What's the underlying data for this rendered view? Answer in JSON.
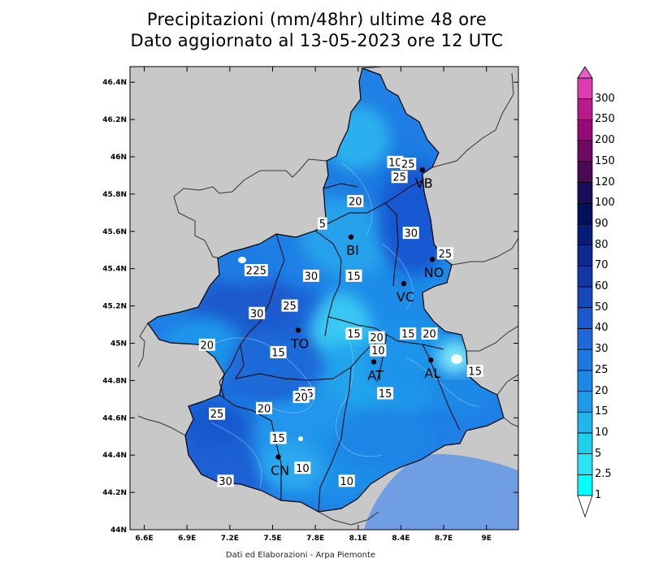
{
  "title": {
    "line1": "Precipitazioni (mm/48hr) ultime 48 ore",
    "line2": "Dato aggiornato al 13-05-2023 ore 12 UTC"
  },
  "footer": "Dati ed Elaborazioni - Arpa Piemonte",
  "axes": {
    "lon_labels": [
      "6.6E",
      "6.9E",
      "7.2E",
      "7.5E",
      "7.8E",
      "8.1E",
      "8.4E",
      "8.7E",
      "9E"
    ],
    "lat_labels": [
      "44N",
      "44.2N",
      "44.4N",
      "44.6N",
      "44.8N",
      "45N",
      "45.2N",
      "45.4N",
      "45.6N",
      "45.8N",
      "46N",
      "46.2N",
      "46.4N"
    ]
  },
  "cities": [
    {
      "name": "VB",
      "lon": 8.55,
      "lat": 45.93
    },
    {
      "name": "BI",
      "lon": 8.05,
      "lat": 45.57
    },
    {
      "name": "NO",
      "lon": 8.62,
      "lat": 45.45
    },
    {
      "name": "VC",
      "lon": 8.42,
      "lat": 45.32
    },
    {
      "name": "TO",
      "lon": 7.68,
      "lat": 45.07
    },
    {
      "name": "AT",
      "lon": 8.21,
      "lat": 44.9
    },
    {
      "name": "AL",
      "lon": 8.61,
      "lat": 44.91
    },
    {
      "name": "CN",
      "lon": 7.54,
      "lat": 44.39
    }
  ],
  "contour_labels": [
    {
      "text": "10",
      "lon": 8.36,
      "lat": 45.97
    },
    {
      "text": "25",
      "lon": 8.45,
      "lat": 45.96
    },
    {
      "text": "25",
      "lon": 8.39,
      "lat": 45.89
    },
    {
      "text": "20",
      "lon": 8.08,
      "lat": 45.76
    },
    {
      "text": "5",
      "lon": 7.85,
      "lat": 45.64
    },
    {
      "text": "30",
      "lon": 8.47,
      "lat": 45.59
    },
    {
      "text": "25",
      "lon": 8.71,
      "lat": 45.48
    },
    {
      "text": "20",
      "lon": 7.36,
      "lat": 45.39
    },
    {
      "text": "25",
      "lon": 7.41,
      "lat": 45.39
    },
    {
      "text": "30",
      "lon": 7.77,
      "lat": 45.36
    },
    {
      "text": "15",
      "lon": 8.07,
      "lat": 45.36
    },
    {
      "text": "30",
      "lon": 7.39,
      "lat": 45.16
    },
    {
      "text": "25",
      "lon": 7.62,
      "lat": 45.2
    },
    {
      "text": "20",
      "lon": 7.04,
      "lat": 44.99
    },
    {
      "text": "15",
      "lon": 7.54,
      "lat": 44.95
    },
    {
      "text": "15",
      "lon": 8.07,
      "lat": 45.05
    },
    {
      "text": "20",
      "lon": 8.23,
      "lat": 45.03
    },
    {
      "text": "10",
      "lon": 8.24,
      "lat": 44.96
    },
    {
      "text": "15",
      "lon": 8.45,
      "lat": 45.05
    },
    {
      "text": "20",
      "lon": 8.6,
      "lat": 45.05
    },
    {
      "text": "15",
      "lon": 8.92,
      "lat": 44.85
    },
    {
      "text": "15",
      "lon": 8.29,
      "lat": 44.73
    },
    {
      "text": "25",
      "lon": 7.74,
      "lat": 44.73
    },
    {
      "text": "20",
      "lon": 7.7,
      "lat": 44.71
    },
    {
      "text": "25",
      "lon": 7.11,
      "lat": 44.62
    },
    {
      "text": "20",
      "lon": 7.44,
      "lat": 44.65
    },
    {
      "text": "15",
      "lon": 7.54,
      "lat": 44.49
    },
    {
      "text": "10",
      "lon": 7.71,
      "lat": 44.33
    },
    {
      "text": "30",
      "lon": 7.17,
      "lat": 44.26
    },
    {
      "text": "10",
      "lon": 8.02,
      "lat": 44.26
    }
  ],
  "colorbar": {
    "levels": [
      "1",
      "2.5",
      "5",
      "10",
      "15",
      "20",
      "25",
      "30",
      "40",
      "50",
      "60",
      "70",
      "80",
      "90",
      "100",
      "120",
      "150",
      "200",
      "250",
      "300"
    ],
    "colors": [
      "#00ffff",
      "#2ae6f4",
      "#1fd0ee",
      "#22b6ec",
      "#1e9cea",
      "#1c88e6",
      "#1f78e0",
      "#1f6ad8",
      "#1a5acd",
      "#1648bb",
      "#1238a6",
      "#0c2a8f",
      "#071c74",
      "#03105a",
      "#1a0e5a",
      "#4a0a55",
      "#6e0a63",
      "#960a78",
      "#b81c8c",
      "#dc3cb0"
    ]
  },
  "colors": {
    "background": "#c8c8c8",
    "sea": "#6f9fe2",
    "region_outline": "#000000"
  }
}
